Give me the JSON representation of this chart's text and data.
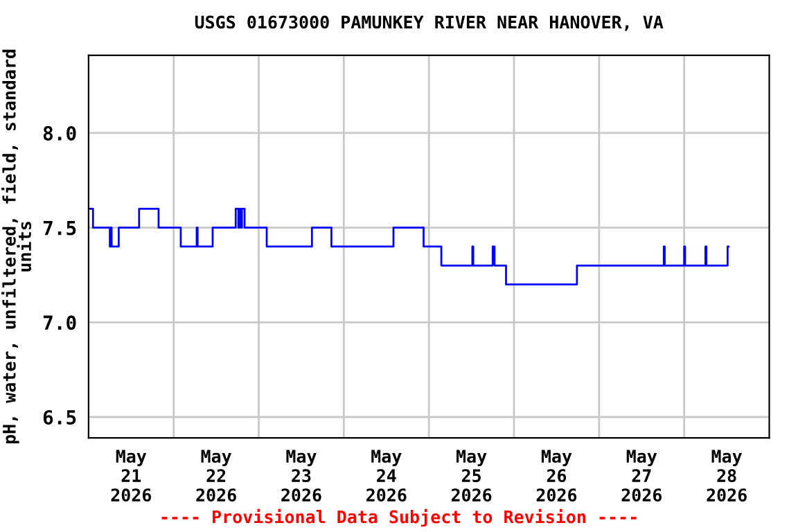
{
  "chart_data": {
    "type": "step",
    "title": "USGS 01673000 PAMUNKEY RIVER NEAR HANOVER, VA",
    "ylabel": "pH, water, unfiltered, field, standard\nunits",
    "annotations": [
      "---- Provisional Data Subject to Revision ----"
    ],
    "x": [
      "2026-05-21T00:00",
      "2026-05-21T01:15",
      "2026-05-21T06:00",
      "2026-05-21T06:15",
      "2026-05-21T06:30",
      "2026-05-21T08:30",
      "2026-05-21T14:15",
      "2026-05-21T19:45",
      "2026-05-22T02:00",
      "2026-05-22T06:30",
      "2026-05-22T06:45",
      "2026-05-22T11:00",
      "2026-05-22T17:30",
      "2026-05-22T18:15",
      "2026-05-22T18:30",
      "2026-05-22T19:00",
      "2026-05-22T19:15",
      "2026-05-22T20:00",
      "2026-05-23T02:15",
      "2026-05-23T15:00",
      "2026-05-23T20:30",
      "2026-05-24T14:00",
      "2026-05-24T22:30",
      "2026-05-25T03:30",
      "2026-05-25T12:15",
      "2026-05-25T12:30",
      "2026-05-25T18:00",
      "2026-05-25T18:30",
      "2026-05-25T21:45",
      "2026-05-26T17:45",
      "2026-05-27T18:15",
      "2026-05-27T18:30",
      "2026-05-28T00:00",
      "2026-05-28T00:15",
      "2026-05-28T06:00",
      "2026-05-28T06:15",
      "2026-05-28T12:15",
      "2026-05-28T12:30"
    ],
    "series": [
      {
        "color": "#0000ff",
        "values": [
          7.6,
          7.5,
          7.4,
          7.5,
          7.4,
          7.5,
          7.6,
          7.5,
          7.4,
          7.5,
          7.4,
          7.5,
          7.6,
          7.5,
          7.6,
          7.5,
          7.6,
          7.5,
          7.4,
          7.5,
          7.4,
          7.5,
          7.4,
          7.3,
          7.4,
          7.3,
          7.4,
          7.3,
          7.2,
          7.3,
          7.4,
          7.3,
          7.4,
          7.3,
          7.4,
          7.3,
          7.4,
          7.4
        ]
      }
    ],
    "xlim": [
      "2026-05-21",
      "2026-05-29"
    ],
    "xticks": [
      {
        "value": "2026-05-21T12:00",
        "label": "May\n21\n2026"
      },
      {
        "value": "2026-05-22T12:00",
        "label": "May\n22\n2026"
      },
      {
        "value": "2026-05-23T12:00",
        "label": "May\n23\n2026"
      },
      {
        "value": "2026-05-24T12:00",
        "label": "May\n24\n2026"
      },
      {
        "value": "2026-05-25T12:00",
        "label": "May\n25\n2026"
      },
      {
        "value": "2026-05-26T12:00",
        "label": "May\n26\n2026"
      },
      {
        "value": "2026-05-27T12:00",
        "label": "May\n27\n2026"
      },
      {
        "value": "2026-05-28T12:00",
        "label": "May\n28\n2026"
      },
      {
        "value": "2026-05-22",
        "label": null
      },
      {
        "value": "2026-05-23",
        "label": null
      },
      {
        "value": "2026-05-24",
        "label": null
      },
      {
        "value": "2026-05-25",
        "label": null
      },
      {
        "value": "2026-05-26",
        "label": null
      },
      {
        "value": "2026-05-27",
        "label": null
      },
      {
        "value": "2026-05-28",
        "label": null
      }
    ],
    "ylim": [
      6.39,
      8.41
    ],
    "yticks": [
      {
        "value": 6.5,
        "label": "6.5"
      },
      {
        "value": 7.0,
        "label": "7.0"
      },
      {
        "value": 7.5,
        "label": "7.5"
      },
      {
        "value": 8.0,
        "label": "8.0"
      }
    ],
    "grid": true
  }
}
